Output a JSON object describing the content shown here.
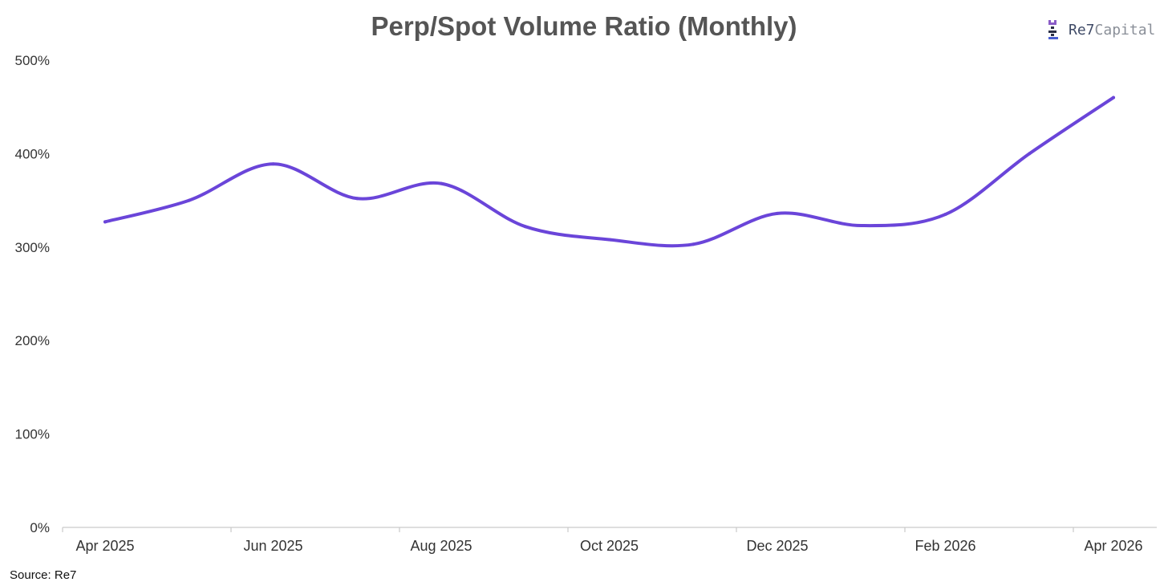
{
  "chart_data": {
    "type": "line",
    "title": "Perp/Spot Volume Ratio (Monthly)",
    "xlabel": "",
    "ylabel": "",
    "ylim": [
      0,
      500
    ],
    "y_ticks": [
      0,
      100,
      200,
      300,
      400,
      500
    ],
    "y_tick_labels": [
      "0%",
      "100%",
      "200%",
      "300%",
      "400%",
      "500%"
    ],
    "x_tick_labels": [
      "Apr 2025",
      "Jun 2025",
      "Aug 2025",
      "Oct 2025",
      "Dec 2025",
      "Feb 2026",
      "Apr 2026"
    ],
    "categories": [
      "Apr 2025",
      "May 2025",
      "Jun 2025",
      "Jul 2025",
      "Aug 2025",
      "Sep 2025",
      "Oct 2025",
      "Nov 2025",
      "Dec 2025",
      "Jan 2026",
      "Feb 2026",
      "Mar 2026",
      "Apr 2026"
    ],
    "series": [
      {
        "name": "Perp/Spot Volume Ratio",
        "color": "#6a45d9",
        "values": [
          327,
          350,
          389,
          352,
          368,
          322,
          308,
          303,
          336,
          323,
          335,
          400,
          460
        ]
      }
    ],
    "grid": false
  },
  "branding": {
    "logo_text_bold": "Re7",
    "logo_text_light": "Capital"
  },
  "footer": {
    "source": "Source: Re7"
  }
}
